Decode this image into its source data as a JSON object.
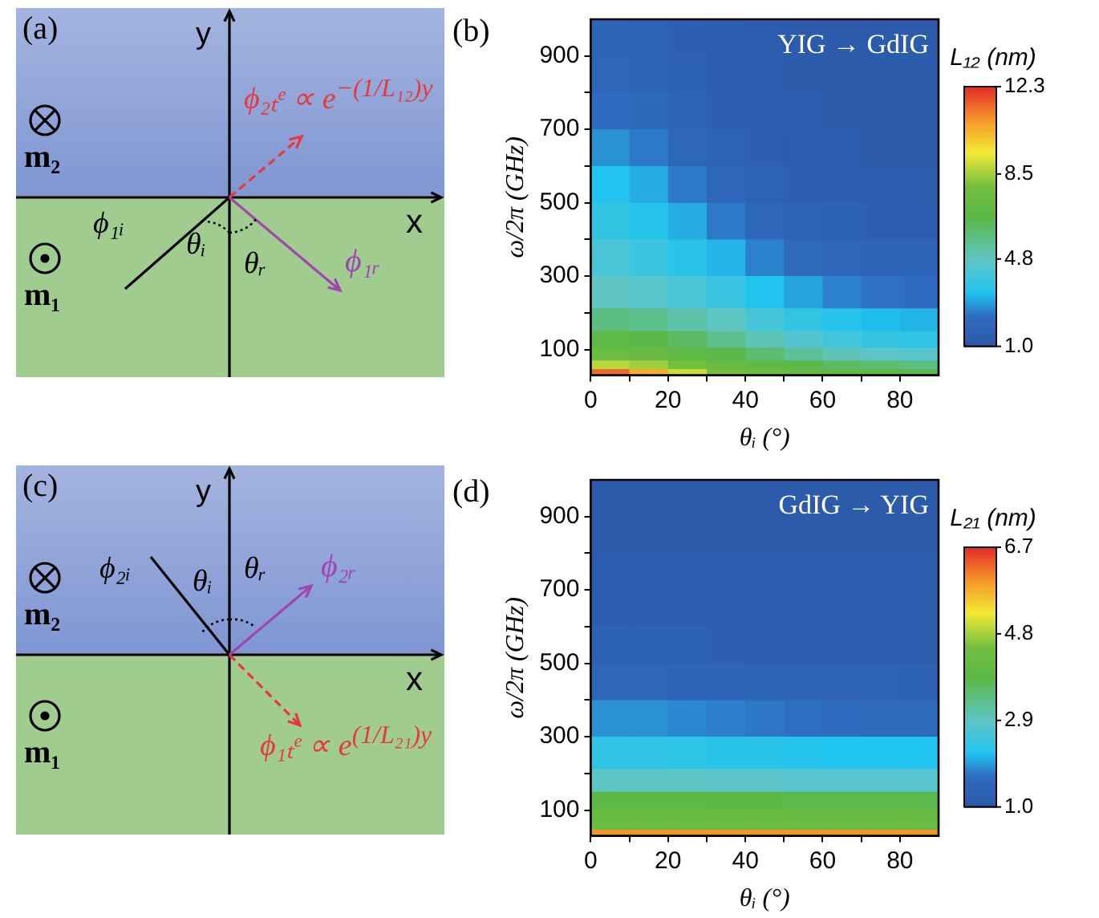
{
  "chart_data": [
    {
      "type": "other",
      "title": "(a)",
      "annotations": [
        "y",
        "x",
        "m₂",
        "m₁",
        "ϕ₁ᵢ",
        "θᵢ",
        "θᵣ",
        "ϕ₁ᵣ",
        "ϕ₂ₜᵉ ∝ e$^{−(1/L₁₂)y}$"
      ]
    },
    {
      "type": "heatmap",
      "title": "(b)",
      "annotations": [
        "YIG → GdIG"
      ],
      "xlabel": "θᵢ (°)",
      "ylabel": "ω/2π (GHz)",
      "clabel": "L₁₂ (nm)",
      "x": [
        5,
        15,
        25,
        35,
        45,
        55,
        65,
        75,
        85
      ],
      "y": [
        950,
        850,
        750,
        650,
        550,
        450,
        350,
        250,
        175,
        125,
        85,
        55,
        38
      ],
      "cells": [
        [
          1.9,
          1.7,
          1.5,
          1.4,
          1.3,
          1.2,
          1.2,
          1.2,
          1.2
        ],
        [
          2.0,
          1.8,
          1.6,
          1.4,
          1.3,
          1.2,
          1.2,
          1.2,
          1.2
        ],
        [
          2.3,
          2.1,
          1.8,
          1.5,
          1.4,
          1.3,
          1.2,
          1.2,
          1.2
        ],
        [
          2.8,
          2.5,
          2.0,
          1.7,
          1.5,
          1.3,
          1.3,
          1.2,
          1.2
        ],
        [
          3.4,
          3.1,
          2.5,
          2.0,
          1.7,
          1.5,
          1.4,
          1.3,
          1.3
        ],
        [
          3.8,
          3.5,
          3.1,
          2.5,
          2.0,
          1.8,
          1.6,
          1.5,
          1.5
        ],
        [
          4.3,
          4.0,
          3.6,
          3.2,
          2.6,
          2.2,
          2.0,
          1.9,
          1.9
        ],
        [
          4.8,
          4.6,
          4.3,
          3.9,
          3.4,
          3.0,
          2.6,
          2.4,
          2.3
        ],
        [
          5.8,
          5.6,
          5.2,
          4.8,
          4.2,
          3.8,
          3.5,
          3.3,
          3.2
        ],
        [
          6.8,
          6.6,
          6.2,
          5.6,
          5.0,
          4.5,
          4.1,
          3.8,
          3.7
        ],
        [
          7.5,
          7.3,
          7.0,
          6.6,
          6.0,
          5.4,
          5.0,
          4.7,
          4.6
        ],
        [
          8.8,
          8.5,
          8.0,
          7.5,
          7.0,
          6.6,
          6.2,
          6.0,
          5.8
        ],
        [
          11.5,
          10.5,
          9.0,
          8.0,
          7.5,
          7.0,
          6.8,
          6.6,
          6.5
        ]
      ],
      "clim": [
        1.0,
        12.3
      ],
      "cticks": [
        {
          "value": 1.0,
          "label": "1.0"
        },
        4.8,
        8.5,
        12.3
      ],
      "xlim": [
        0,
        90
      ],
      "xticks": [
        0,
        {
          "value": 10,
          "label": null
        },
        20,
        {
          "value": 30,
          "label": null
        },
        40,
        {
          "value": 50,
          "label": null
        },
        60,
        {
          "value": 70,
          "label": null
        },
        80
      ],
      "ylim": [
        30,
        1000
      ],
      "yticks": [
        100,
        {
          "value": 200,
          "label": null
        },
        300,
        {
          "value": 400,
          "label": null
        },
        500,
        {
          "value": 600,
          "label": null
        },
        700,
        {
          "value": 800,
          "label": null
        },
        900
      ]
    },
    {
      "type": "other",
      "title": "(c)",
      "annotations": [
        "y",
        "x",
        "m₂",
        "m₁",
        "ϕ₂ᵢ",
        "θᵢ",
        "θᵣ",
        "ϕ₂ᵣ",
        "ϕ₁ₜᵉ ∝ e$^{(1/L₂₁)y}$"
      ]
    },
    {
      "type": "heatmap",
      "title": "(d)",
      "annotations": [
        "GdIG → YIG"
      ],
      "xlabel": "θᵢ (°)",
      "ylabel": "ω/2π (GHz)",
      "clabel": "L₂₁ (nm)",
      "x": [
        5,
        15,
        25,
        35,
        45,
        55,
        65,
        75,
        85
      ],
      "y": [
        950,
        850,
        750,
        650,
        550,
        450,
        350,
        250,
        175,
        125,
        85,
        55,
        38
      ],
      "cells": [
        [
          1.1,
          1.1,
          1.1,
          1.1,
          1.1,
          1.1,
          1.1,
          1.1,
          1.1
        ],
        [
          1.1,
          1.1,
          1.1,
          1.1,
          1.1,
          1.1,
          1.1,
          1.1,
          1.1
        ],
        [
          1.15,
          1.15,
          1.15,
          1.15,
          1.15,
          1.15,
          1.15,
          1.15,
          1.15
        ],
        [
          1.2,
          1.2,
          1.2,
          1.2,
          1.2,
          1.2,
          1.2,
          1.2,
          1.2
        ],
        [
          1.3,
          1.3,
          1.3,
          1.25,
          1.25,
          1.25,
          1.25,
          1.2,
          1.2
        ],
        [
          1.5,
          1.5,
          1.45,
          1.45,
          1.4,
          1.4,
          1.35,
          1.35,
          1.3
        ],
        [
          1.9,
          1.9,
          1.85,
          1.8,
          1.75,
          1.7,
          1.65,
          1.6,
          1.6
        ],
        [
          2.4,
          2.4,
          2.35,
          2.3,
          2.3,
          2.25,
          2.2,
          2.2,
          2.2
        ],
        [
          2.9,
          2.9,
          2.9,
          2.85,
          2.85,
          2.8,
          2.8,
          2.8,
          2.8
        ],
        [
          3.9,
          3.9,
          3.9,
          3.85,
          3.85,
          3.8,
          3.8,
          3.8,
          3.8
        ],
        [
          4.2,
          4.2,
          4.2,
          4.2,
          4.2,
          4.2,
          4.2,
          4.2,
          4.2
        ],
        [
          4.3,
          4.3,
          4.3,
          4.3,
          4.3,
          4.3,
          4.3,
          4.3,
          4.3
        ],
        [
          6.0,
          6.0,
          6.0,
          6.0,
          6.0,
          6.0,
          6.0,
          6.0,
          6.0
        ]
      ],
      "clim": [
        1.0,
        6.7
      ],
      "cticks": [
        {
          "value": 1.0,
          "label": "1.0"
        },
        2.9,
        4.8,
        6.7
      ],
      "xlim": [
        0,
        90
      ],
      "xticks": [
        0,
        {
          "value": 10,
          "label": null
        },
        20,
        {
          "value": 30,
          "label": null
        },
        40,
        {
          "value": 50,
          "label": null
        },
        60,
        {
          "value": 70,
          "label": null
        },
        80
      ],
      "ylim": [
        30,
        1000
      ],
      "yticks": [
        100,
        {
          "value": 200,
          "label": null
        },
        300,
        {
          "value": 400,
          "label": null
        },
        500,
        {
          "value": 600,
          "label": null
        },
        700,
        {
          "value": 800,
          "label": null
        },
        900
      ]
    }
  ]
}
